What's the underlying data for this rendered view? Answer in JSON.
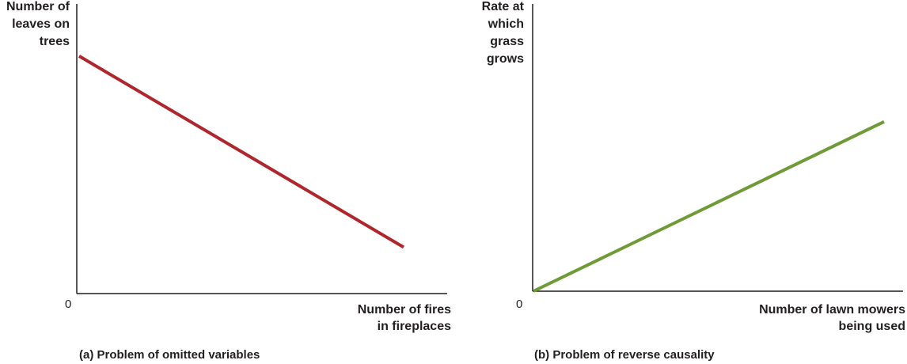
{
  "chart_data": [
    {
      "type": "line",
      "caption": "(a) Problem of omitted variables",
      "ylabel": "Number of leaves on trees",
      "ylabel_lines": [
        "Number of",
        "leaves on",
        "trees"
      ],
      "xlabel": "Number of fires in fireplaces",
      "xlabel_lines": [
        "Number of fires",
        "in fireplaces"
      ],
      "origin_label": "0",
      "color": "#b0262d",
      "xlim": [
        0,
        100
      ],
      "ylim": [
        0,
        100
      ],
      "series": [
        {
          "x": [
            0,
            100
          ],
          "y": [
            82,
            16
          ]
        }
      ]
    },
    {
      "type": "line",
      "caption": "(b) Problem of reverse causality",
      "ylabel": "Rate at which grass grows",
      "ylabel_lines": [
        "Rate at",
        "which",
        "grass",
        "grows"
      ],
      "xlabel": "Number of lawn mowers being used",
      "xlabel_lines": [
        "Number of lawn mowers",
        "being used"
      ],
      "origin_label": "0",
      "color": "#6e9b35",
      "xlim": [
        0,
        100
      ],
      "ylim": [
        0,
        100
      ],
      "series": [
        {
          "x": [
            0,
            100
          ],
          "y": [
            0,
            59
          ]
        }
      ]
    }
  ]
}
